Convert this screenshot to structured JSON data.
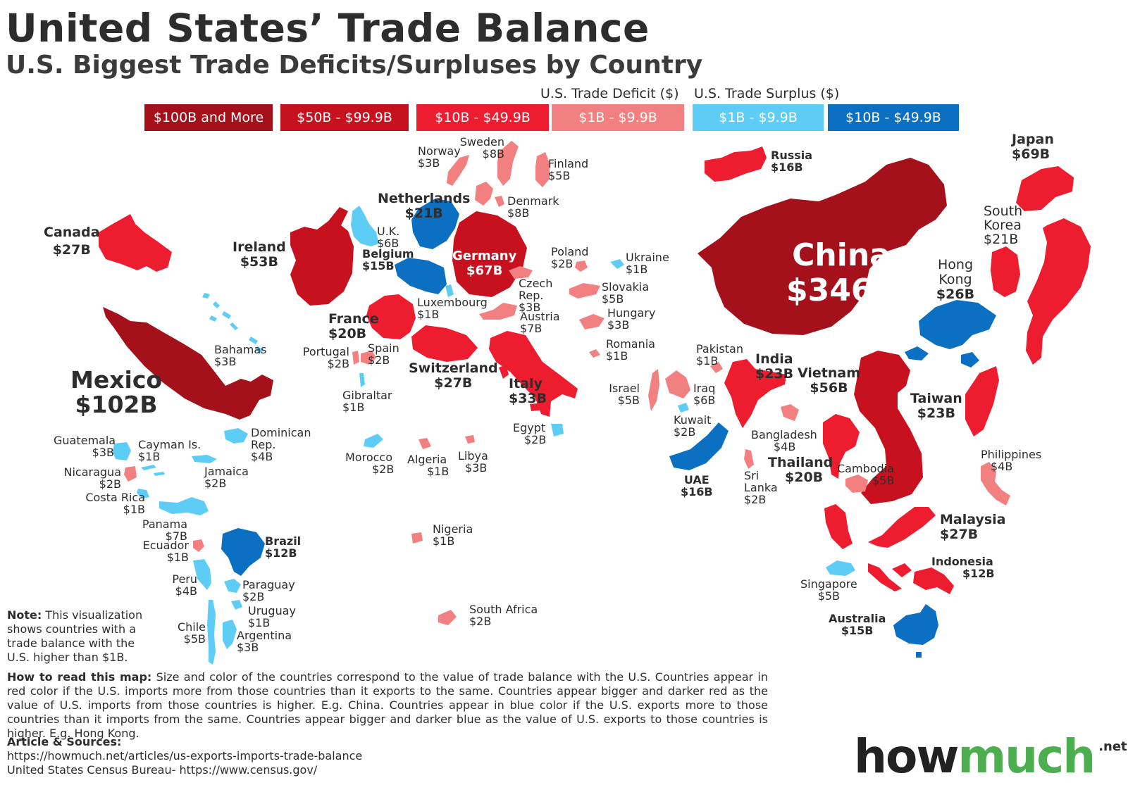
{
  "title": "United States’ Trade Balance",
  "subtitle": "U.S. Biggest Trade Deficits/Surpluses by Country",
  "legend": {
    "deficit_heading": "U.S. Trade Deficit ($)",
    "surplus_heading": "U.S. Trade Surplus ($)",
    "bins": [
      {
        "label": "$100B and More",
        "color": "#a4111b"
      },
      {
        "label": "$50B - $99.9B",
        "color": "#c8111f"
      },
      {
        "label": "$10B - $49.9B",
        "color": "#ed1c2e"
      },
      {
        "label": "$1B - $9.9B",
        "color": "#f28080"
      },
      {
        "label": "$1B - $9.9B",
        "color": "#5ecdf5"
      },
      {
        "label": "$10B - $49.9B",
        "color": "#0b6fc2"
      }
    ]
  },
  "countries": {
    "canada": {
      "name": "Canada",
      "value": "$27B"
    },
    "mexico": {
      "name": "Mexico",
      "value": "$102B"
    },
    "bahamas": {
      "name": "Bahamas",
      "value": "$3B"
    },
    "guatemala": {
      "name": "Guatemala",
      "value": "$3B"
    },
    "cayman": {
      "name": "Cayman Is.",
      "value": "$1B"
    },
    "dominican": {
      "name": "Dominican Rep.",
      "value": "$4B"
    },
    "nicaragua": {
      "name": "Nicaragua",
      "value": "$2B"
    },
    "jamaica": {
      "name": "Jamaica",
      "value": "$2B"
    },
    "costa_rica": {
      "name": "Costa Rica",
      "value": "$1B"
    },
    "panama": {
      "name": "Panama",
      "value": "$7B"
    },
    "ecuador": {
      "name": "Ecuador",
      "value": "$1B"
    },
    "brazil": {
      "name": "Brazil",
      "value": "$12B"
    },
    "peru": {
      "name": "Peru",
      "value": "$4B"
    },
    "paraguay": {
      "name": "Paraguay",
      "value": "$2B"
    },
    "uruguay": {
      "name": "Uruguay",
      "value": "$1B"
    },
    "chile": {
      "name": "Chile",
      "value": "$5B"
    },
    "argentina": {
      "name": "Argentina",
      "value": "$3B"
    },
    "ireland": {
      "name": "Ireland",
      "value": "$53B"
    },
    "uk": {
      "name": "U.K.",
      "value": "$6B"
    },
    "netherlands": {
      "name": "Netherlands",
      "value": "$21B"
    },
    "belgium": {
      "name": "Belgium",
      "value": "$15B"
    },
    "germany": {
      "name": "Germany",
      "value": "$67B"
    },
    "norway": {
      "name": "Norway",
      "value": "$3B"
    },
    "sweden": {
      "name": "Sweden",
      "value": "$8B"
    },
    "finland": {
      "name": "Finland",
      "value": "$5B"
    },
    "denmark": {
      "name": "Denmark",
      "value": "$8B"
    },
    "poland": {
      "name": "Poland",
      "value": "$2B"
    },
    "ukraine": {
      "name": "Ukraine",
      "value": "$1B"
    },
    "czech": {
      "name": "Czech Rep.",
      "value": "$3B"
    },
    "slovakia": {
      "name": "Slovakia",
      "value": "$5B"
    },
    "hungary": {
      "name": "Hungary",
      "value": "$3B"
    },
    "austria": {
      "name": "Austria",
      "value": "$7B"
    },
    "romania": {
      "name": "Romania",
      "value": "$1B"
    },
    "luxembourg": {
      "name": "Luxembourg",
      "value": "$1B"
    },
    "france": {
      "name": "France",
      "value": "$20B"
    },
    "switzerland": {
      "name": "Switzerland",
      "value": "$27B"
    },
    "italy": {
      "name": "Italy",
      "value": "$33B"
    },
    "portugal": {
      "name": "Portugal",
      "value": "$2B"
    },
    "spain": {
      "name": "Spain",
      "value": "$2B"
    },
    "gibraltar": {
      "name": "Gibraltar",
      "value": "$1B"
    },
    "morocco": {
      "name": "Morocco",
      "value": "$2B"
    },
    "algeria": {
      "name": "Algeria",
      "value": "$1B"
    },
    "libya": {
      "name": "Libya",
      "value": "$3B"
    },
    "egypt": {
      "name": "Egypt",
      "value": "$2B"
    },
    "nigeria": {
      "name": "Nigeria",
      "value": "$1B"
    },
    "south_africa": {
      "name": "South Africa",
      "value": "$2B"
    },
    "israel": {
      "name": "Israel",
      "value": "$5B"
    },
    "iraq": {
      "name": "Iraq",
      "value": "$6B"
    },
    "kuwait": {
      "name": "Kuwait",
      "value": "$2B"
    },
    "uae": {
      "name": "UAE",
      "value": "$16B"
    },
    "pakistan": {
      "name": "Pakistan",
      "value": "$1B"
    },
    "india": {
      "name": "India",
      "value": "$23B"
    },
    "bangladesh": {
      "name": "Bangladesh",
      "value": "$4B"
    },
    "sri_lanka": {
      "name": "Sri Lanka",
      "value": "$2B"
    },
    "russia": {
      "name": "Russia",
      "value": "$16B"
    },
    "china": {
      "name": "China",
      "value": "$346B"
    },
    "japan": {
      "name": "Japan",
      "value": "$69B"
    },
    "south_korea": {
      "name": "South Korea",
      "value": "$21B"
    },
    "hong_kong": {
      "name": "Hong Kong",
      "value": "$26B"
    },
    "taiwan": {
      "name": "Taiwan",
      "value": "$23B"
    },
    "vietnam": {
      "name": "Vietnam",
      "value": "$56B"
    },
    "thailand": {
      "name": "Thailand",
      "value": "$20B"
    },
    "cambodia": {
      "name": "Cambodia",
      "value": "$5B"
    },
    "malaysia": {
      "name": "Malaysia",
      "value": "$27B"
    },
    "philippines": {
      "name": "Philippines",
      "value": "$4B"
    },
    "singapore": {
      "name": "Singapore",
      "value": "$5B"
    },
    "indonesia": {
      "name": "Indonesia",
      "value": "$12B"
    },
    "australia": {
      "name": "Australia",
      "value": "$15B"
    }
  },
  "note": {
    "label": "Note:",
    "text": " This visualization shows countries with a trade balance with the U.S. higher than $1B."
  },
  "how_to": {
    "label": "How to read this map:",
    "text": " Size and color of the countries correspond to the value of trade balance with the U.S. Countries appear in red color if the U.S. imports more from those countries than it exports to the same. Countries appear bigger and darker red as the value of U.S. imports from those countries is higher. E.g. China. Countries appear in blue color if the U.S. exports more to those countries than it imports from the same. Countries appear bigger and darker blue as the value of U.S. exports to those countries is higher. E.g. Hong Kong."
  },
  "sources": {
    "heading": "Article & Sources:",
    "line1": "https://howmuch.net/articles/us-exports-imports-trade-balance",
    "line2": "United States Census Bureau- https://www.census.gov/"
  },
  "logo": {
    "part1": "how",
    "part2": "much",
    "suffix": ".net",
    "color1": "#222222",
    "color2": "#4cae4f"
  }
}
